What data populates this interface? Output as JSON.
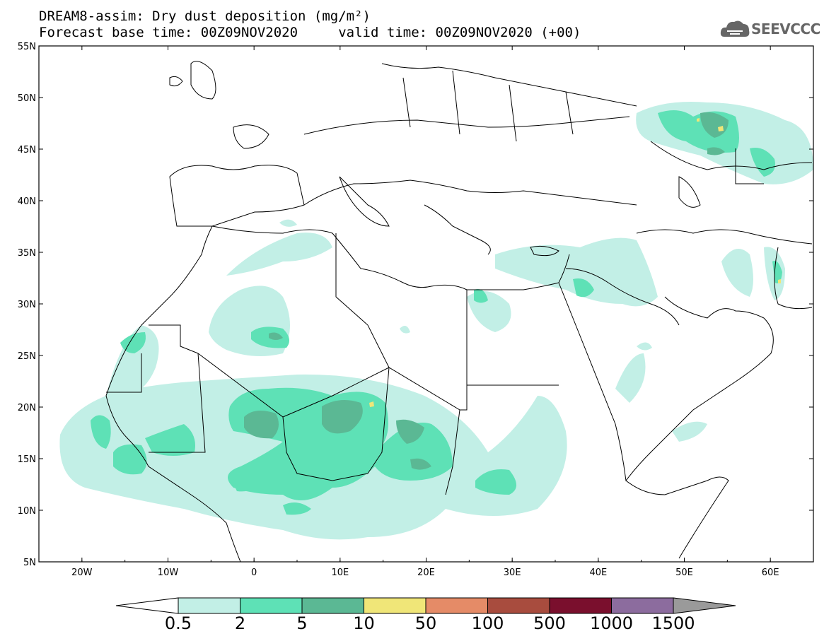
{
  "title": {
    "line1": "DREAM8-assim: Dry dust deposition (mg/m²)",
    "line2": "Forecast base time: 00Z09NOV2020     valid time: 00Z09NOV2020 (+00)"
  },
  "logo": {
    "text": "SEEVCCC",
    "icon": "cloud-icon"
  },
  "map": {
    "lon_range": [
      -25,
      65
    ],
    "lat_range": [
      5,
      55
    ],
    "lon_ticks": [
      "20W",
      "10W",
      "0",
      "10E",
      "20E",
      "30E",
      "40E",
      "50E",
      "60E"
    ],
    "lat_ticks": [
      "55N",
      "50N",
      "45N",
      "40N",
      "35N",
      "30N",
      "25N",
      "20N",
      "15N",
      "10N",
      "5N"
    ],
    "coastline_color": "#000000"
  },
  "colorbar": {
    "labels": [
      "0.5",
      "2",
      "5",
      "10",
      "50",
      "100",
      "500",
      "1000",
      "1500"
    ],
    "colors": [
      "#c2efe6",
      "#5ee1b6",
      "#5bb894",
      "#f0e678",
      "#e58b67",
      "#a84c3e",
      "#7a0f2d",
      "#8c6c9e"
    ],
    "under_color": "#ffffff",
    "over_color": "#9a9a9a"
  }
}
